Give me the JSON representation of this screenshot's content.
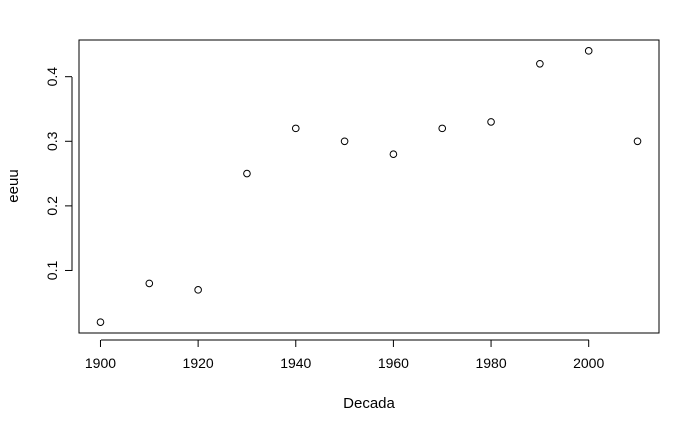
{
  "chart_data": {
    "type": "scatter",
    "title": "",
    "xlabel": "Decada",
    "ylabel": "eeuu",
    "x": [
      1900,
      1910,
      1920,
      1930,
      1940,
      1950,
      1960,
      1970,
      1980,
      1990,
      2000,
      2010
    ],
    "y": [
      0.02,
      0.08,
      0.07,
      0.25,
      0.32,
      0.3,
      0.28,
      0.32,
      0.33,
      0.42,
      0.44,
      0.3
    ],
    "xlim": [
      1895.6,
      2014.4
    ],
    "ylim": [
      0.0032,
      0.4568
    ],
    "xticks": [
      "1900",
      "1920",
      "1940",
      "1960",
      "1980",
      "2000"
    ],
    "yticks": [
      "0.1",
      "0.2",
      "0.3",
      "0.4"
    ],
    "marker": "open-circle",
    "grid": false,
    "color": "#000000"
  }
}
